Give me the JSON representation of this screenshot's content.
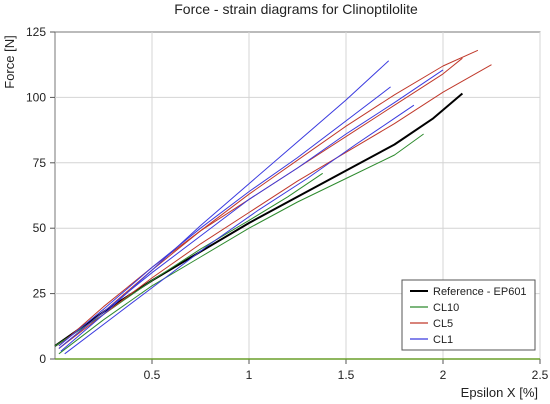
{
  "chart_data": {
    "type": "line",
    "title": "Force - strain diagrams for Clinoptilolite",
    "xlabel": "Epsilon X [%]",
    "ylabel": "Force [N]",
    "xlim": [
      0,
      2.5
    ],
    "ylim": [
      0,
      125
    ],
    "xticks": [
      0.5,
      1,
      1.5,
      2,
      2.5
    ],
    "yticks": [
      0,
      25,
      50,
      75,
      100,
      125
    ],
    "xtick_labels": [
      "0.5",
      "1",
      "1.5",
      "2",
      "2.5"
    ],
    "ytick_labels": [
      "0",
      "25",
      "50",
      "75",
      "100",
      "125"
    ],
    "grid": true,
    "legend_position": "bottom-right",
    "legend": [
      {
        "label": "Reference - EP601",
        "color": "#000000"
      },
      {
        "label": "CL10",
        "color": "#2e8b2e"
      },
      {
        "label": "CL5",
        "color": "#c0392b"
      },
      {
        "label": "CL1",
        "color": "#3a3adf"
      }
    ],
    "series": [
      {
        "group": "Reference - EP601",
        "color": "#000000",
        "width": 2,
        "points": [
          [
            0.0,
            5
          ],
          [
            0.25,
            18
          ],
          [
            0.5,
            30
          ],
          [
            0.75,
            41
          ],
          [
            1.0,
            52
          ],
          [
            1.25,
            62
          ],
          [
            1.5,
            72
          ],
          [
            1.75,
            82
          ],
          [
            1.95,
            92
          ],
          [
            2.1,
            101.5
          ]
        ]
      },
      {
        "group": "CL10",
        "color": "#2e8b2e",
        "width": 1,
        "points": [
          [
            0.02,
            2
          ],
          [
            0.25,
            15
          ],
          [
            0.5,
            28
          ],
          [
            0.75,
            39
          ],
          [
            1.0,
            50
          ],
          [
            1.25,
            60
          ],
          [
            1.5,
            69
          ],
          [
            1.75,
            78
          ],
          [
            1.9,
            86
          ]
        ]
      },
      {
        "group": "CL10",
        "color": "#2e8b2e",
        "width": 1,
        "points": [
          [
            0.0,
            5
          ],
          [
            0.25,
            17
          ],
          [
            0.5,
            30
          ],
          [
            0.75,
            42
          ],
          [
            1.0,
            53
          ],
          [
            1.2,
            62
          ],
          [
            1.38,
            71
          ]
        ]
      },
      {
        "group": "CL5",
        "color": "#c0392b",
        "width": 1,
        "points": [
          [
            0.02,
            5
          ],
          [
            0.25,
            20
          ],
          [
            0.5,
            35
          ],
          [
            0.75,
            49
          ],
          [
            1.0,
            61
          ],
          [
            1.25,
            73
          ],
          [
            1.5,
            85
          ],
          [
            1.75,
            97
          ],
          [
            2.0,
            109
          ],
          [
            2.1,
            115
          ]
        ]
      },
      {
        "group": "CL5",
        "color": "#c0392b",
        "width": 1,
        "points": [
          [
            0.02,
            4
          ],
          [
            0.25,
            17
          ],
          [
            0.5,
            31
          ],
          [
            0.75,
            44
          ],
          [
            1.0,
            56
          ],
          [
            1.25,
            68
          ],
          [
            1.5,
            79
          ],
          [
            1.75,
            90
          ],
          [
            2.0,
            102
          ],
          [
            2.25,
            112.5
          ]
        ]
      },
      {
        "group": "CL5",
        "color": "#c0392b",
        "width": 1,
        "points": [
          [
            0.02,
            4
          ],
          [
            0.25,
            18
          ],
          [
            0.5,
            34
          ],
          [
            0.75,
            49
          ],
          [
            1.0,
            63
          ],
          [
            1.25,
            76
          ],
          [
            1.5,
            89
          ],
          [
            1.75,
            101
          ],
          [
            2.0,
            112
          ],
          [
            2.18,
            118
          ]
        ]
      },
      {
        "group": "CL1",
        "color": "#3a3adf",
        "width": 1,
        "points": [
          [
            0.03,
            3
          ],
          [
            0.25,
            17
          ],
          [
            0.5,
            34
          ],
          [
            0.75,
            51
          ],
          [
            1.0,
            67
          ],
          [
            1.25,
            83
          ],
          [
            1.5,
            99
          ],
          [
            1.72,
            114
          ]
        ]
      },
      {
        "group": "CL1",
        "color": "#3a3adf",
        "width": 1,
        "points": [
          [
            0.02,
            5
          ],
          [
            0.25,
            19
          ],
          [
            0.5,
            35
          ],
          [
            0.75,
            50
          ],
          [
            1.0,
            64
          ],
          [
            1.25,
            77
          ],
          [
            1.5,
            91
          ],
          [
            1.73,
            104
          ]
        ]
      },
      {
        "group": "CL1",
        "color": "#3a3adf",
        "width": 1,
        "points": [
          [
            0.02,
            4
          ],
          [
            0.25,
            18
          ],
          [
            0.5,
            33
          ],
          [
            0.75,
            47
          ],
          [
            1.0,
            61
          ],
          [
            1.25,
            73
          ],
          [
            1.5,
            86
          ],
          [
            1.75,
            98
          ],
          [
            2.0,
            110.5
          ]
        ]
      },
      {
        "group": "CL1",
        "color": "#3a3adf",
        "width": 1,
        "points": [
          [
            0.05,
            2
          ],
          [
            0.3,
            16
          ],
          [
            0.55,
            30
          ],
          [
            0.8,
            44
          ],
          [
            1.05,
            57
          ],
          [
            1.3,
            69
          ],
          [
            1.55,
            82
          ],
          [
            1.75,
            92
          ],
          [
            1.85,
            97
          ]
        ]
      }
    ]
  }
}
